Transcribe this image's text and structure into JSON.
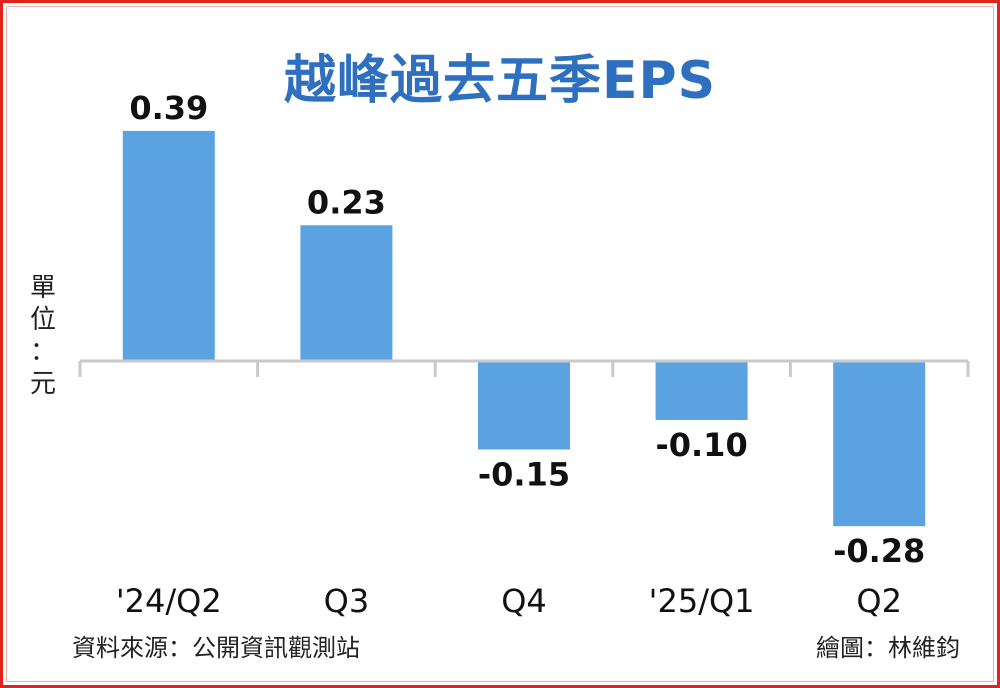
{
  "chart_data": {
    "type": "bar",
    "title": "越峰過去五季EPS",
    "ylabel": "單位：元",
    "categories": [
      "'24/Q2",
      "Q3",
      "Q4",
      "'25/Q1",
      "Q2"
    ],
    "values": [
      0.39,
      0.23,
      -0.15,
      -0.1,
      -0.28
    ],
    "value_labels": [
      "0.39",
      "0.23",
      "-0.15",
      "-0.10",
      "-0.28"
    ],
    "ylim": [
      -0.28,
      0.39
    ],
    "grid": false,
    "bar_color": "#5ba3e0",
    "axis_color": "#c9c9c9"
  },
  "footer": {
    "source": "資料來源：公開資訊觀測站",
    "credit": "繪圖：林維鈞"
  }
}
